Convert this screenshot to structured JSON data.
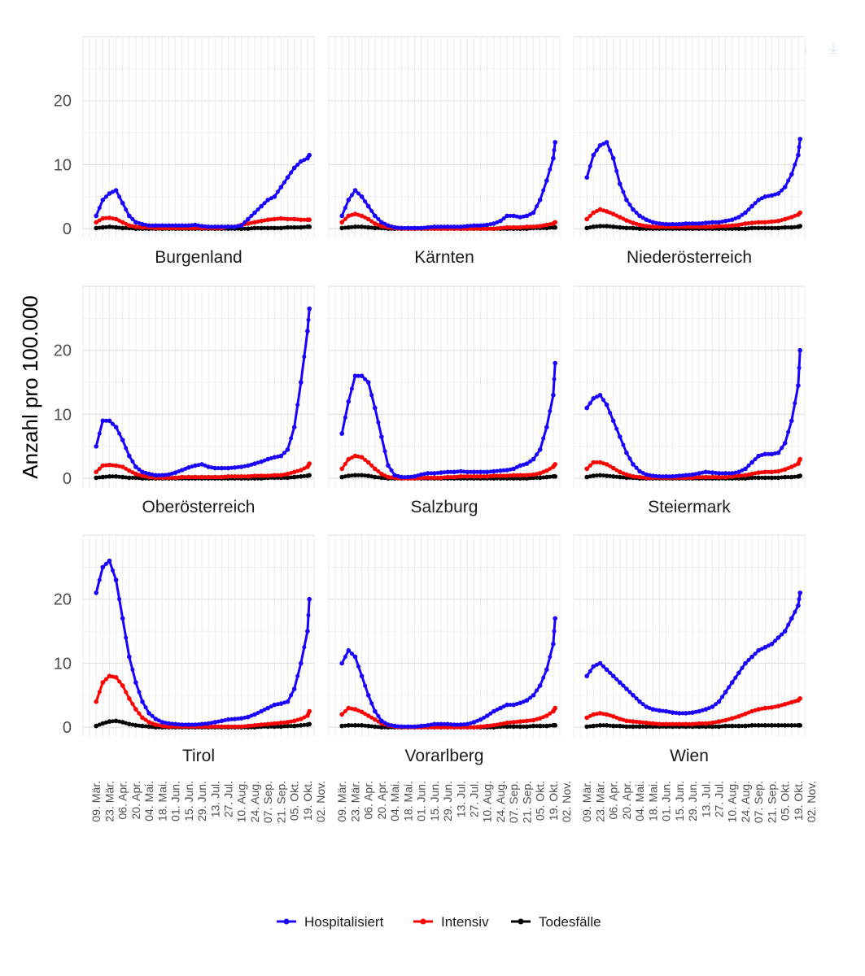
{
  "toolbar": {
    "icons": [
      "zoom-select-icon",
      "zoom-icon",
      "reset-zoom-icon",
      "download-icon"
    ]
  },
  "chart_data": {
    "type": "line",
    "ylabel": "Anzahl pro 100.000",
    "ylim": [
      -1.5,
      30
    ],
    "yticks": [
      0,
      10,
      20
    ],
    "xlabels": [
      "09. Mär.",
      "23. Mär.",
      "06. Apr.",
      "20. Apr.",
      "04. Mai.",
      "18. Mai.",
      "01. Jun.",
      "15. Jun.",
      "29. Jun.",
      "13. Jul.",
      "27. Jul.",
      "10. Aug.",
      "24. Aug.",
      "07. Sep.",
      "21. Sep.",
      "05. Okt.",
      "19. Okt.",
      "02. Nov."
    ],
    "legend": [
      {
        "name": "Hospitalisiert",
        "color": "#1a00ff"
      },
      {
        "name": "Intensiv",
        "color": "#ff0000"
      },
      {
        "name": "Todesfälle",
        "color": "#000000"
      }
    ],
    "series_x_days": [
      14,
      21,
      28,
      35,
      42,
      49,
      56,
      63,
      70,
      77,
      84,
      91,
      98,
      105,
      112,
      119,
      126,
      133,
      140,
      147,
      154,
      161,
      168,
      175,
      182,
      189,
      196,
      203,
      210,
      217,
      224,
      231,
      238,
      240
    ],
    "panels": [
      {
        "name": "Burgenland",
        "hosp": [
          2,
          4.5,
          5.5,
          6,
          4,
          2,
          1,
          0.7,
          0.5,
          0.5,
          0.5,
          0.5,
          0.5,
          0.5,
          0.5,
          0.6,
          0.4,
          0.3,
          0.3,
          0.3,
          0.3,
          0.3,
          0.5,
          1.5,
          2.5,
          3.5,
          4.5,
          5,
          6.5,
          8,
          9.5,
          10.5,
          11,
          11.5
        ],
        "icu": [
          1,
          1.6,
          1.7,
          1.5,
          1,
          0.5,
          0.3,
          0.2,
          0.2,
          0.1,
          0.1,
          0.1,
          0.1,
          0.1,
          0.1,
          0.1,
          0.1,
          0.1,
          0.1,
          0.1,
          0.3,
          0.3,
          0.6,
          0.8,
          1,
          1.2,
          1.4,
          1.5,
          1.6,
          1.5,
          1.5,
          1.4,
          1.4,
          1.4
        ],
        "death": [
          0.1,
          0.2,
          0.3,
          0.2,
          0.1,
          0.1,
          0,
          0,
          0,
          0,
          0,
          0,
          0,
          0,
          0,
          0,
          0,
          0,
          0,
          0,
          0,
          0,
          0,
          0,
          0.1,
          0.1,
          0.1,
          0.1,
          0.1,
          0.2,
          0.2,
          0.2,
          0.3,
          0.3
        ]
      },
      {
        "name": "Kärnten",
        "hosp": [
          2,
          4.5,
          6,
          5,
          3.5,
          2,
          1,
          0.5,
          0.2,
          0.1,
          0.1,
          0.1,
          0.1,
          0.2,
          0.3,
          0.3,
          0.3,
          0.3,
          0.3,
          0.4,
          0.5,
          0.5,
          0.6,
          0.8,
          1.2,
          2,
          2,
          1.8,
          2,
          2.5,
          4.5,
          7.5,
          11,
          13.5
        ],
        "icu": [
          1,
          2,
          2.3,
          2,
          1.5,
          0.8,
          0.4,
          0.2,
          0.1,
          0,
          0,
          0,
          0,
          0,
          0,
          0,
          0,
          0,
          0,
          0,
          0,
          0,
          0,
          0,
          0.1,
          0.2,
          0.2,
          0.2,
          0.3,
          0.3,
          0.4,
          0.6,
          0.8,
          1
        ],
        "death": [
          0.1,
          0.2,
          0.3,
          0.3,
          0.2,
          0.1,
          0.1,
          0,
          0,
          0,
          0,
          0,
          0,
          0,
          0,
          0,
          0,
          0,
          0,
          0,
          0,
          0,
          0,
          0,
          0,
          0,
          0,
          0,
          0,
          0.1,
          0.1,
          0.1,
          0.2,
          0.2
        ]
      },
      {
        "name": "Niederösterreich",
        "hosp": [
          8,
          11.5,
          13,
          13.5,
          11,
          7,
          4.5,
          3,
          2,
          1.4,
          1,
          0.8,
          0.7,
          0.7,
          0.7,
          0.8,
          0.8,
          0.8,
          0.9,
          1,
          1,
          1.2,
          1.4,
          1.8,
          2.5,
          3.5,
          4.5,
          5,
          5.2,
          5.5,
          6.5,
          8.5,
          11.5,
          14
        ],
        "icu": [
          1.5,
          2.5,
          3,
          2.7,
          2.3,
          1.8,
          1.3,
          0.9,
          0.6,
          0.4,
          0.3,
          0.3,
          0.3,
          0.3,
          0.3,
          0.3,
          0.3,
          0.3,
          0.3,
          0.3,
          0.4,
          0.4,
          0.5,
          0.6,
          0.8,
          0.9,
          1,
          1,
          1.1,
          1.2,
          1.5,
          1.8,
          2.2,
          2.5
        ],
        "death": [
          0.1,
          0.3,
          0.4,
          0.4,
          0.3,
          0.2,
          0.1,
          0.1,
          0,
          0,
          0,
          0,
          0,
          0,
          0,
          0,
          0,
          0,
          0,
          0,
          0,
          0,
          0,
          0,
          0,
          0.1,
          0.1,
          0.1,
          0.1,
          0.1,
          0.2,
          0.2,
          0.3,
          0.4
        ]
      },
      {
        "name": "Oberösterreich",
        "hosp": [
          5,
          9,
          9,
          8,
          6,
          3.5,
          1.8,
          1,
          0.7,
          0.5,
          0.5,
          0.6,
          0.9,
          1.3,
          1.7,
          2,
          2.2,
          1.8,
          1.6,
          1.6,
          1.6,
          1.7,
          1.8,
          2,
          2.3,
          2.6,
          3,
          3.3,
          3.5,
          4.5,
          8,
          15,
          23,
          26.5
        ],
        "icu": [
          1,
          2,
          2.1,
          2,
          1.8,
          1.2,
          0.7,
          0.4,
          0.2,
          0.1,
          0.1,
          0.1,
          0.1,
          0.2,
          0.2,
          0.2,
          0.2,
          0.2,
          0.2,
          0.2,
          0.3,
          0.3,
          0.3,
          0.3,
          0.4,
          0.4,
          0.4,
          0.5,
          0.5,
          0.7,
          1,
          1.3,
          1.8,
          2.3
        ],
        "death": [
          0.1,
          0.2,
          0.3,
          0.3,
          0.2,
          0.1,
          0.1,
          0,
          0,
          0,
          0,
          0,
          0,
          0,
          0,
          0,
          0,
          0,
          0,
          0,
          0,
          0,
          0,
          0,
          0,
          0,
          0.1,
          0.1,
          0.1,
          0.1,
          0.2,
          0.3,
          0.4,
          0.5
        ]
      },
      {
        "name": "Salzburg",
        "hosp": [
          7,
          12,
          16,
          16,
          15,
          11,
          6.5,
          2,
          0.5,
          0.2,
          0.2,
          0.3,
          0.6,
          0.8,
          0.8,
          0.9,
          1,
          1,
          1.1,
          1,
          1,
          1,
          1,
          1.1,
          1.2,
          1.3,
          1.5,
          2,
          2.3,
          3,
          4.5,
          8,
          13,
          18
        ],
        "icu": [
          1.5,
          3,
          3.5,
          3.3,
          2.5,
          1.5,
          0.7,
          0.2,
          0.1,
          0,
          0,
          0,
          0.1,
          0.1,
          0.1,
          0.1,
          0.2,
          0.2,
          0.3,
          0.3,
          0.3,
          0.3,
          0.3,
          0.4,
          0.4,
          0.4,
          0.5,
          0.5,
          0.5,
          0.6,
          0.8,
          1.2,
          1.8,
          2.2
        ],
        "death": [
          0.2,
          0.4,
          0.5,
          0.5,
          0.4,
          0.2,
          0.1,
          0,
          0,
          0,
          0,
          0,
          0,
          0,
          0,
          0,
          0,
          0,
          0,
          0,
          0,
          0,
          0,
          0,
          0,
          0,
          0,
          0,
          0,
          0.1,
          0.1,
          0.2,
          0.3,
          0.3
        ]
      },
      {
        "name": "Steiermark",
        "hosp": [
          11,
          12.5,
          13,
          11.5,
          9,
          6.5,
          4,
          2.2,
          1.1,
          0.6,
          0.4,
          0.3,
          0.3,
          0.3,
          0.4,
          0.5,
          0.6,
          0.8,
          1,
          0.9,
          0.8,
          0.8,
          0.8,
          1,
          1.5,
          2.5,
          3.5,
          3.8,
          3.8,
          4,
          5.5,
          9,
          14.5,
          20
        ],
        "icu": [
          1.5,
          2.5,
          2.5,
          2.2,
          1.6,
          1,
          0.6,
          0.3,
          0.2,
          0.1,
          0.1,
          0.1,
          0.1,
          0.1,
          0.1,
          0.1,
          0.1,
          0.2,
          0.2,
          0.2,
          0.2,
          0.2,
          0.3,
          0.4,
          0.5,
          0.7,
          0.9,
          1,
          1,
          1.1,
          1.4,
          1.8,
          2.3,
          3
        ],
        "death": [
          0.2,
          0.4,
          0.5,
          0.4,
          0.3,
          0.2,
          0.1,
          0.1,
          0,
          0,
          0,
          0,
          0,
          0,
          0,
          0,
          0,
          0,
          0,
          0,
          0,
          0,
          0,
          0,
          0,
          0.1,
          0.1,
          0.1,
          0.1,
          0.1,
          0.2,
          0.2,
          0.3,
          0.4
        ]
      },
      {
        "name": "Tirol",
        "hosp": [
          21,
          25,
          26,
          23,
          17,
          11,
          7,
          4,
          2.2,
          1.3,
          0.8,
          0.6,
          0.5,
          0.4,
          0.4,
          0.4,
          0.5,
          0.6,
          0.8,
          1,
          1.2,
          1.3,
          1.4,
          1.6,
          2,
          2.5,
          3,
          3.5,
          3.7,
          4,
          6,
          10,
          15,
          20
        ],
        "icu": [
          4,
          7,
          8,
          7.8,
          6.5,
          4.5,
          2.8,
          1.5,
          0.8,
          0.4,
          0.2,
          0.1,
          0.1,
          0.1,
          0.1,
          0.1,
          0.1,
          0.1,
          0.1,
          0.1,
          0.1,
          0.1,
          0.1,
          0.2,
          0.3,
          0.4,
          0.5,
          0.6,
          0.7,
          0.8,
          1,
          1.3,
          1.8,
          2.5
        ],
        "death": [
          0.2,
          0.6,
          0.9,
          1,
          0.8,
          0.5,
          0.3,
          0.2,
          0.1,
          0,
          0,
          0,
          0,
          0,
          0,
          0,
          0,
          0,
          0,
          0,
          0,
          0,
          0,
          0,
          0,
          0.1,
          0.1,
          0.1,
          0.1,
          0.2,
          0.2,
          0.3,
          0.4,
          0.5
        ]
      },
      {
        "name": "Vorarlberg",
        "hosp": [
          10,
          12,
          11,
          8,
          5,
          2.5,
          1,
          0.4,
          0.2,
          0.1,
          0.1,
          0.1,
          0.2,
          0.3,
          0.5,
          0.5,
          0.5,
          0.4,
          0.4,
          0.5,
          0.8,
          1.2,
          1.8,
          2.5,
          3,
          3.5,
          3.5,
          3.8,
          4.2,
          5,
          6.5,
          9,
          13,
          17
        ],
        "icu": [
          2,
          3,
          2.8,
          2.4,
          1.8,
          1.2,
          0.6,
          0.3,
          0.1,
          0,
          0,
          0,
          0,
          0,
          0,
          0,
          0,
          0,
          0,
          0,
          0,
          0.1,
          0.2,
          0.3,
          0.5,
          0.7,
          0.8,
          0.9,
          1,
          1.1,
          1.4,
          1.8,
          2.5,
          3
        ],
        "death": [
          0.2,
          0.3,
          0.3,
          0.3,
          0.2,
          0.1,
          0,
          0,
          0,
          0,
          0,
          0,
          0,
          0,
          0,
          0,
          0,
          0,
          0,
          0,
          0,
          0,
          0,
          0,
          0.1,
          0.1,
          0.1,
          0.1,
          0.1,
          0.2,
          0.2,
          0.2,
          0.3,
          0.3
        ]
      },
      {
        "name": "Wien",
        "hosp": [
          8,
          9.5,
          10,
          9,
          8,
          7,
          6,
          5,
          4,
          3.2,
          2.8,
          2.6,
          2.5,
          2.3,
          2.2,
          2.2,
          2.3,
          2.5,
          2.8,
          3.2,
          4,
          5.5,
          7,
          8.5,
          10,
          11,
          12,
          12.5,
          13,
          14,
          15,
          17,
          19,
          21
        ],
        "icu": [
          1.5,
          2,
          2.2,
          2,
          1.7,
          1.3,
          1,
          0.9,
          0.8,
          0.7,
          0.6,
          0.5,
          0.5,
          0.5,
          0.5,
          0.5,
          0.5,
          0.6,
          0.6,
          0.7,
          0.9,
          1.1,
          1.4,
          1.7,
          2.1,
          2.5,
          2.8,
          3,
          3.1,
          3.3,
          3.6,
          3.9,
          4.2,
          4.5
        ],
        "death": [
          0.1,
          0.2,
          0.3,
          0.3,
          0.2,
          0.2,
          0.1,
          0.1,
          0.1,
          0.1,
          0.1,
          0.1,
          0.1,
          0.1,
          0.1,
          0.1,
          0.1,
          0.1,
          0.1,
          0.1,
          0.1,
          0.2,
          0.2,
          0.2,
          0.2,
          0.3,
          0.3,
          0.3,
          0.3,
          0.3,
          0.3,
          0.3,
          0.3,
          0.3
        ]
      }
    ]
  }
}
